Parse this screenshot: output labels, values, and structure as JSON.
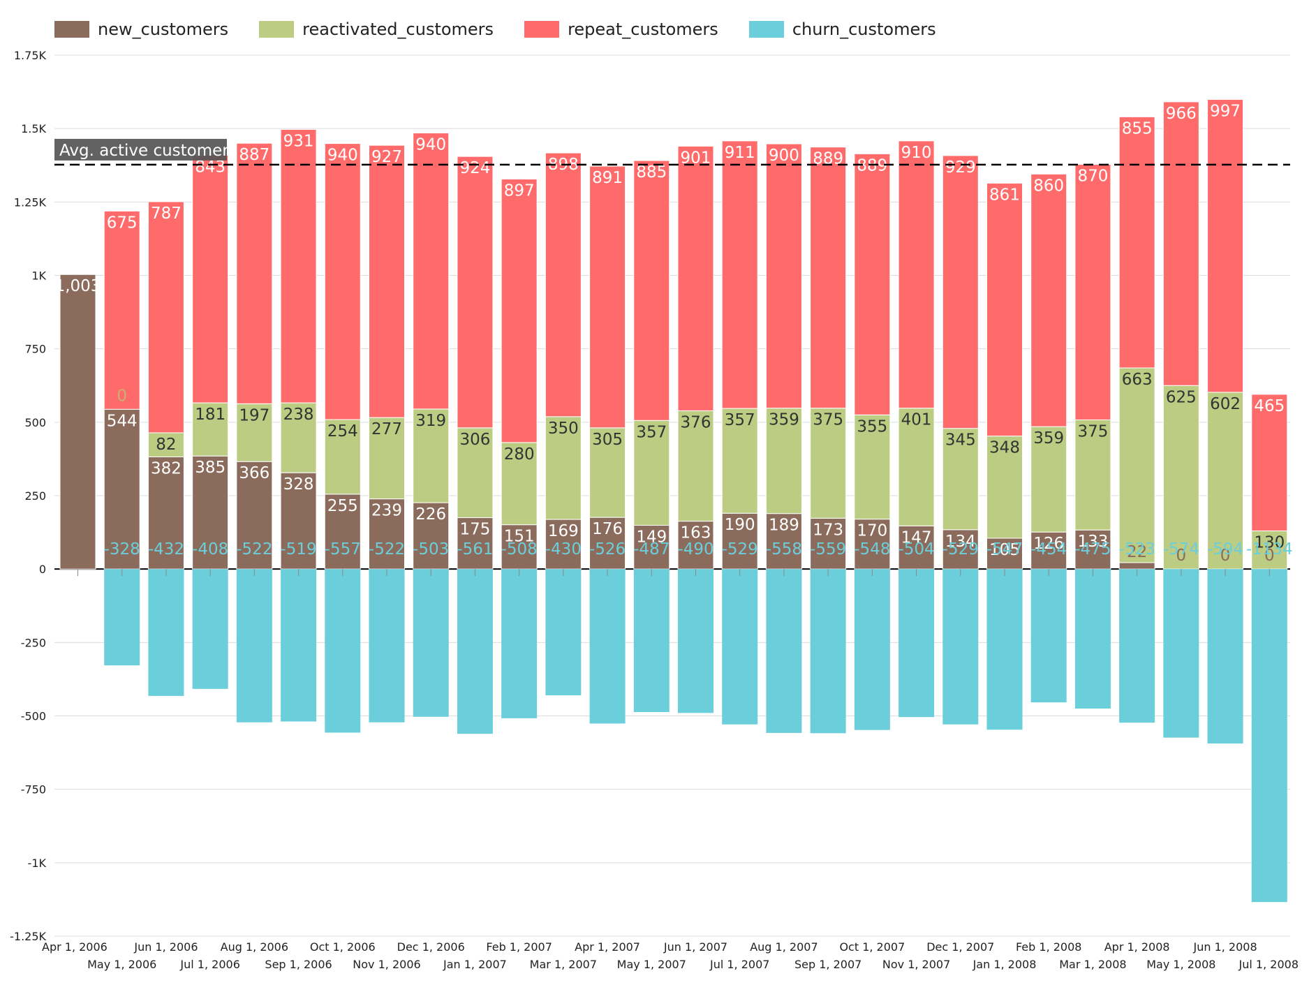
{
  "colors": {
    "new_customers": "#8b6b5b",
    "reactivated_customers": "#bccd83",
    "repeat_customers": "#ff6b6b",
    "churn_customers": "#6bcedb",
    "avg_line": "#000000",
    "avg_label_bg": "#555555"
  },
  "chart_data": {
    "type": "bar",
    "stacked": true,
    "legend_position": "top-left",
    "grid": true,
    "categories": [
      "Apr 1, 2006",
      "May 1, 2006",
      "Jun 1, 2006",
      "Jul 1, 2006",
      "Aug 1, 2006",
      "Sep 1, 2006",
      "Oct 1, 2006",
      "Nov 1, 2006",
      "Dec 1, 2006",
      "Jan 1, 2007",
      "Feb 1, 2007",
      "Mar 1, 2007",
      "Apr 1, 2007",
      "May 1, 2007",
      "Jun 1, 2007",
      "Jul 1, 2007",
      "Aug 1, 2007",
      "Sep 1, 2007",
      "Oct 1, 2007",
      "Nov 1, 2007",
      "Dec 1, 2007",
      "Jan 1, 2008",
      "Feb 1, 2008",
      "Mar 1, 2008",
      "Apr 1, 2008",
      "May 1, 2008",
      "Jun 1, 2008",
      "Jul 1, 2008"
    ],
    "series": [
      {
        "name": "new_customers",
        "color_key": "new_customers",
        "values": [
          1003,
          544,
          382,
          385,
          366,
          328,
          255,
          239,
          226,
          175,
          151,
          169,
          176,
          149,
          163,
          190,
          189,
          173,
          170,
          147,
          134,
          105,
          126,
          133,
          22,
          0,
          0,
          0
        ]
      },
      {
        "name": "reactivated_customers",
        "color_key": "reactivated_customers",
        "values": [
          0,
          0,
          82,
          181,
          197,
          238,
          254,
          277,
          319,
          306,
          280,
          350,
          305,
          357,
          376,
          357,
          359,
          375,
          355,
          401,
          345,
          348,
          359,
          375,
          663,
          625,
          602,
          130
        ]
      },
      {
        "name": "repeat_customers",
        "color_key": "repeat_customers",
        "values": [
          0,
          675,
          787,
          843,
          887,
          931,
          940,
          927,
          940,
          924,
          897,
          898,
          891,
          885,
          901,
          911,
          900,
          889,
          889,
          910,
          929,
          861,
          860,
          870,
          855,
          966,
          997,
          465
        ]
      },
      {
        "name": "churn_customers",
        "color_key": "churn_customers",
        "values": [
          0,
          -328,
          -432,
          -408,
          -522,
          -519,
          -557,
          -522,
          -503,
          -561,
          -508,
          -430,
          -526,
          -487,
          -490,
          -529,
          -558,
          -559,
          -548,
          -504,
          -529,
          -547,
          -454,
          -475,
          -523,
          -574,
          -594,
          -1134
        ]
      }
    ],
    "yticks": [
      {
        "v": 1750,
        "label": "1.75K"
      },
      {
        "v": 1500,
        "label": "1.5K"
      },
      {
        "v": 1250,
        "label": "1.25K"
      },
      {
        "v": 1000,
        "label": "1K"
      },
      {
        "v": 750,
        "label": "750"
      },
      {
        "v": 500,
        "label": "500"
      },
      {
        "v": 250,
        "label": "250"
      },
      {
        "v": 0,
        "label": "0"
      },
      {
        "v": -250,
        "label": "-250"
      },
      {
        "v": -500,
        "label": "-500"
      },
      {
        "v": -750,
        "label": "-750"
      },
      {
        "v": -1000,
        "label": "-1K"
      },
      {
        "v": -1250,
        "label": "-1.25K"
      }
    ],
    "ylim": [
      -1250,
      1750
    ],
    "reference_line": {
      "label": "Avg. active customer",
      "value": 1377
    },
    "title": "",
    "xlabel": "",
    "ylabel": ""
  }
}
